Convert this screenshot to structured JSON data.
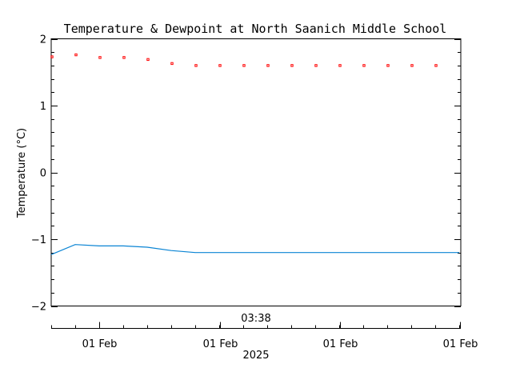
{
  "chart_data": {
    "type": "line",
    "title": "Temperature & Dewpoint at North Saanich Middle School",
    "ylabel": "Temperature (°C)",
    "time_label": "03:38",
    "year_label": "2025",
    "ylim": [
      -2.0,
      2.0
    ],
    "yticks": [
      -2,
      -1,
      0,
      1,
      2
    ],
    "ytick_labels": [
      "−2",
      "−1",
      "0",
      "1",
      "2"
    ],
    "x_tick_labels": [
      "01 Feb",
      "01 Feb",
      "01 Feb",
      "01 Feb"
    ],
    "series": [
      {
        "color": "#ff0000",
        "style": "points",
        "values": [
          1.73,
          1.76,
          1.72,
          1.72,
          1.69,
          1.63,
          1.6,
          1.6,
          1.6,
          1.6,
          1.6,
          1.6,
          1.6,
          1.6,
          1.6,
          1.6,
          1.6
        ]
      },
      {
        "color": "#0a84d4",
        "style": "line",
        "values": [
          -1.23,
          -1.08,
          -1.1,
          -1.1,
          -1.12,
          -1.17,
          -1.2,
          -1.2,
          -1.2,
          -1.2,
          -1.2,
          -1.2,
          -1.2,
          -1.2,
          -1.2,
          -1.2,
          -1.2,
          -1.2
        ]
      }
    ]
  }
}
